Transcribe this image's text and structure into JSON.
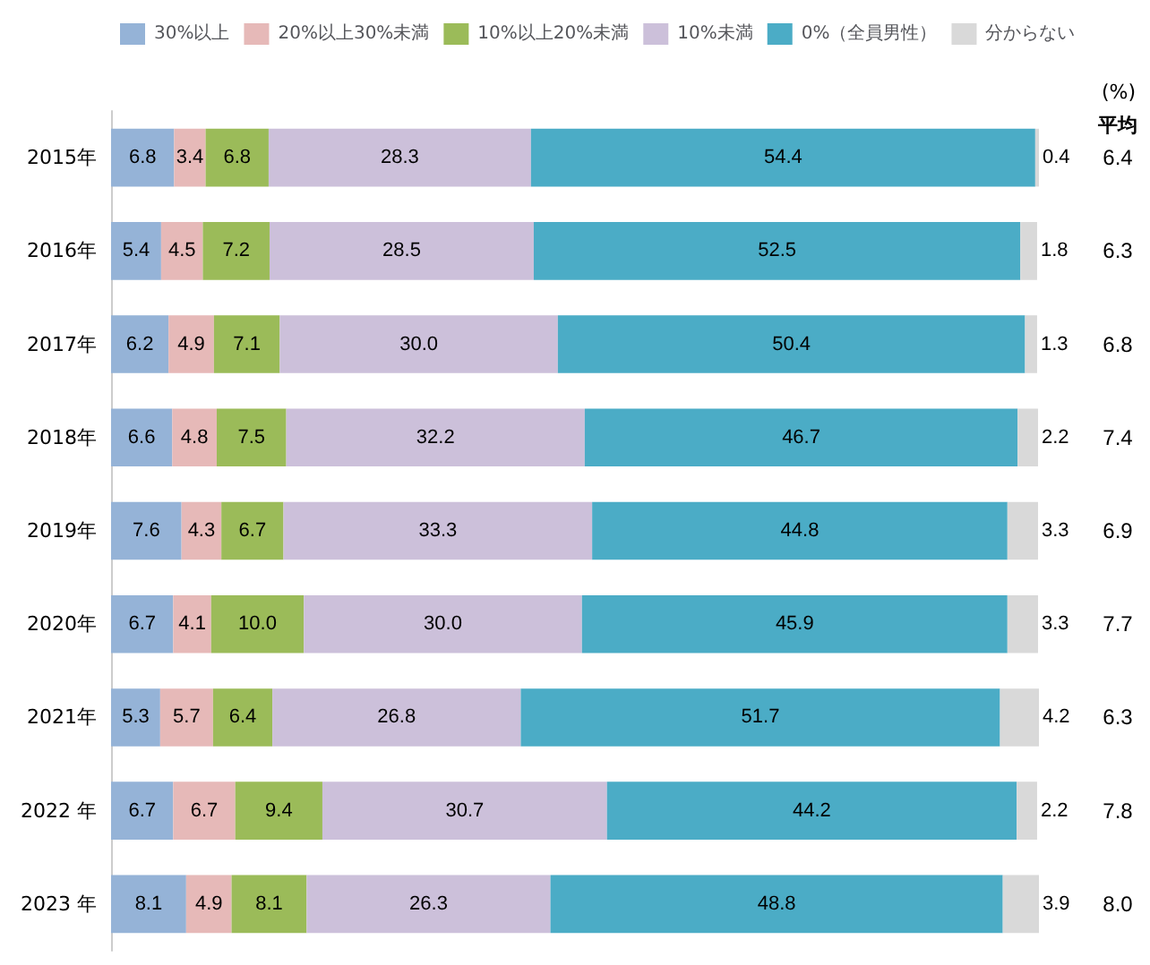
{
  "chart_data": {
    "type": "bar",
    "orientation": "horizontal",
    "stacked": true,
    "legend": "top",
    "categories": [
      "2015年",
      "2016年",
      "2017年",
      "2018年",
      "2019年",
      "2020年",
      "2021年",
      "2022 年",
      "2023 年"
    ],
    "series": [
      {
        "name": "30%以上",
        "color": "#95b3d7",
        "values": [
          6.8,
          5.4,
          6.2,
          6.6,
          7.6,
          6.7,
          5.3,
          6.7,
          8.1
        ],
        "value_labels": [
          "6.8",
          "5.4",
          "6.2",
          "6.6",
          "7.6",
          "6.7",
          "5.3",
          "6.7",
          "8.1"
        ]
      },
      {
        "name": "20%以上30%未満",
        "color": "#e6b9b8",
        "values": [
          3.4,
          4.5,
          4.9,
          4.8,
          4.3,
          4.1,
          5.7,
          6.7,
          4.9
        ],
        "value_labels": [
          "3.4",
          "4.5",
          "4.9",
          "4.8",
          "4.3",
          "4.1",
          "5.7",
          "6.7",
          "4.9"
        ]
      },
      {
        "name": "10%以上20%未満",
        "color": "#9bbb59",
        "values": [
          6.8,
          7.2,
          7.1,
          7.5,
          6.7,
          10.0,
          6.4,
          9.4,
          8.1
        ],
        "value_labels": [
          "6.8",
          "7.2",
          "7.1",
          "7.5",
          "6.7",
          "10.0",
          "6.4",
          "9.4",
          "8.1"
        ]
      },
      {
        "name": "10%未満",
        "color": "#ccc0da",
        "values": [
          28.3,
          28.5,
          30.0,
          32.2,
          33.3,
          30.0,
          26.8,
          30.7,
          26.3
        ],
        "value_labels": [
          "28.3",
          "28.5",
          "30.0",
          "32.2",
          "33.3",
          "30.0",
          "26.8",
          "30.7",
          "26.3"
        ]
      },
      {
        "name": "0%（全員男性）",
        "color": "#4bacc6",
        "values": [
          54.4,
          52.5,
          50.4,
          46.7,
          44.8,
          45.9,
          51.7,
          44.2,
          48.8
        ],
        "value_labels": [
          "54.4",
          "52.5",
          "50.4",
          "46.7",
          "44.8",
          "45.9",
          "51.7",
          "44.2",
          "48.8"
        ]
      },
      {
        "name": "分からない",
        "color": "#d9d9d9",
        "values": [
          0.4,
          1.8,
          1.3,
          2.2,
          3.3,
          3.3,
          4.2,
          2.2,
          3.9
        ],
        "value_labels": [
          "0.4",
          "1.8",
          "1.3",
          "2.2",
          "3.3",
          "3.3",
          "4.2",
          "2.2",
          "3.9"
        ]
      }
    ],
    "annotations": [
      "(%)",
      "平均",
      "6.4",
      "6.3",
      "6.8",
      "7.4",
      "6.9",
      "7.7",
      "6.3",
      "7.8",
      "8.0"
    ]
  }
}
